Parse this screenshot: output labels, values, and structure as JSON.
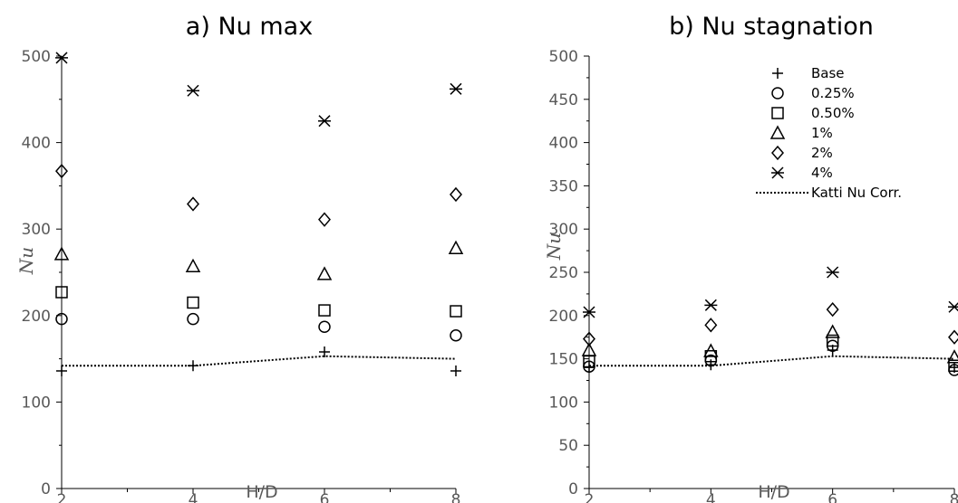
{
  "chart_data": [
    {
      "type": "scatter",
      "title": "a) Nu max",
      "xlabel": "H/D",
      "ylabel": "Nu",
      "xlim": [
        2,
        8
      ],
      "ylim": [
        0,
        500
      ],
      "x_ticks": [
        2,
        4,
        6,
        8
      ],
      "y_ticks": [
        0,
        100,
        200,
        300,
        400,
        500
      ],
      "series": [
        {
          "name": "Base",
          "marker": "plus",
          "x": [
            2,
            4,
            6,
            8
          ],
          "y": [
            136,
            142,
            158,
            136
          ]
        },
        {
          "name": "0.25%",
          "marker": "circle",
          "x": [
            2,
            4,
            6,
            8
          ],
          "y": [
            196,
            196,
            187,
            177
          ]
        },
        {
          "name": "0.50%",
          "marker": "square",
          "x": [
            2,
            4,
            6,
            8
          ],
          "y": [
            227,
            215,
            206,
            205
          ]
        },
        {
          "name": "1%",
          "marker": "triangle",
          "x": [
            2,
            4,
            6,
            8
          ],
          "y": [
            271,
            257,
            248,
            278
          ]
        },
        {
          "name": "2%",
          "marker": "diamond",
          "x": [
            2,
            4,
            6,
            8
          ],
          "y": [
            367,
            329,
            311,
            340
          ]
        },
        {
          "name": "4%",
          "marker": "asterisk",
          "x": [
            2,
            4,
            6,
            8
          ],
          "y": [
            498,
            460,
            425,
            462
          ]
        }
      ],
      "lines": [
        {
          "name": "Katti Nu Corr.",
          "style": "dotted",
          "x": [
            2,
            4,
            6,
            8
          ],
          "y": [
            142,
            142,
            153,
            150
          ]
        }
      ]
    },
    {
      "type": "scatter",
      "title": "b) Nu stagnation",
      "xlabel": "H/D",
      "ylabel": "Nu",
      "xlim": [
        2,
        8
      ],
      "ylim": [
        0,
        500
      ],
      "x_ticks": [
        2,
        4,
        6,
        8
      ],
      "y_ticks": [
        0,
        50,
        100,
        150,
        200,
        250,
        300,
        350,
        400,
        450,
        500
      ],
      "legend": "top-right",
      "series": [
        {
          "name": "Base",
          "marker": "plus",
          "x": [
            2,
            4,
            6,
            8
          ],
          "y": [
            140,
            143,
            160,
            140
          ]
        },
        {
          "name": "0.25%",
          "marker": "circle",
          "x": [
            2,
            4,
            6,
            8
          ],
          "y": [
            141,
            148,
            165,
            137
          ]
        },
        {
          "name": "0.50%",
          "marker": "square",
          "x": [
            2,
            4,
            6,
            8
          ],
          "y": [
            147,
            153,
            171,
            142
          ]
        },
        {
          "name": "1%",
          "marker": "triangle",
          "x": [
            2,
            4,
            6,
            8
          ],
          "y": [
            160,
            159,
            181,
            152
          ]
        },
        {
          "name": "2%",
          "marker": "diamond",
          "x": [
            2,
            4,
            6,
            8
          ],
          "y": [
            173,
            189,
            207,
            175
          ]
        },
        {
          "name": "4%",
          "marker": "asterisk",
          "x": [
            2,
            4,
            6,
            8
          ],
          "y": [
            204,
            212,
            250,
            210
          ]
        }
      ],
      "lines": [
        {
          "name": "Katti Nu Corr.",
          "style": "dotted",
          "x": [
            2,
            4,
            6,
            8
          ],
          "y": [
            142,
            142,
            153,
            150
          ]
        }
      ]
    }
  ]
}
